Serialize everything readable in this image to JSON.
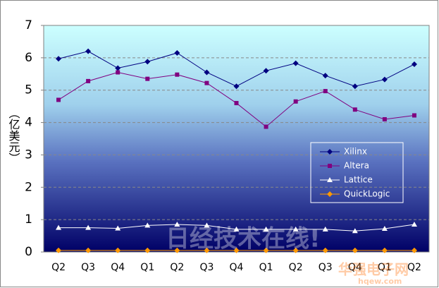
{
  "chart_data": {
    "type": "line",
    "y_label": "（亿美元）",
    "categories": [
      "Q2",
      "Q3",
      "Q4",
      "Q1",
      "Q2",
      "Q3",
      "Q4",
      "Q1",
      "Q2",
      "Q3",
      "Q4",
      "Q1",
      "Q2"
    ],
    "series": [
      {
        "name": "Xilinx",
        "color": "#000080",
        "marker": "diamond",
        "values": [
          5.97,
          6.2,
          5.68,
          5.88,
          6.15,
          5.55,
          5.12,
          5.6,
          5.83,
          5.45,
          5.12,
          5.33,
          5.8
        ]
      },
      {
        "name": "Altera",
        "color": "#800080",
        "marker": "square",
        "values": [
          4.7,
          5.28,
          5.55,
          5.35,
          5.48,
          5.22,
          4.6,
          3.87,
          4.65,
          4.97,
          4.4,
          4.1,
          4.22
        ]
      },
      {
        "name": "Lattice",
        "color": "#ffffff",
        "marker": "triangle",
        "values": [
          0.75,
          0.75,
          0.73,
          0.82,
          0.85,
          0.82,
          0.7,
          0.7,
          0.7,
          0.7,
          0.65,
          0.72,
          0.85
        ]
      },
      {
        "name": "QuickLogic",
        "color": "#ff9900",
        "marker": "diamond",
        "values": [
          0.05,
          0.05,
          0.05,
          0.05,
          0.05,
          0.05,
          0.05,
          0.05,
          0.05,
          0.05,
          0.05,
          0.05,
          0.05
        ]
      }
    ],
    "ylim": [
      0,
      7
    ],
    "yticks": [
      0,
      1,
      2,
      3,
      4,
      5,
      6,
      7
    ],
    "grid": true,
    "watermarks": [
      "日经技术在线!",
      "华强电子网",
      "hqew.com"
    ]
  }
}
